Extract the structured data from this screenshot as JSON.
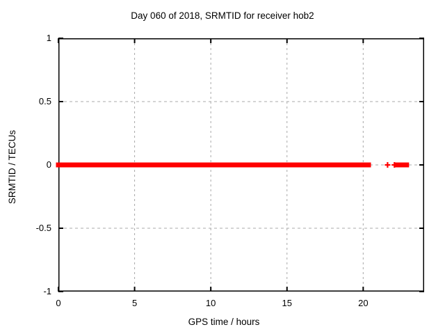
{
  "chart_data": {
    "type": "scatter",
    "title": "Day 060 of 2018, SRMTID for receiver hob2",
    "xlabel": "GPS time / hours",
    "ylabel": "SRMTID / TECUs",
    "xlim": [
      0,
      24
    ],
    "ylim": [
      -1,
      1
    ],
    "xticks": [
      0,
      5,
      10,
      15,
      20
    ],
    "xtick_labels": [
      "0",
      "5",
      "10",
      "15",
      "20"
    ],
    "yticks": [
      1,
      0.5,
      0,
      -0.5,
      -1
    ],
    "ytick_labels": [
      "1",
      "0.5",
      "0",
      "-0.5",
      "-1"
    ],
    "grid": true,
    "legend": "none",
    "marker": "plus",
    "colors": {
      "marker": "#ff0000",
      "grid": "#a8a8a8",
      "axis": "#000000",
      "background": "#ffffff"
    },
    "series": [
      {
        "name": "SRMTID",
        "y_value": 0,
        "dense_segments_hours": [
          [
            0.0,
            4.05
          ],
          [
            4.2,
            4.95
          ],
          [
            5.1,
            6.85
          ],
          [
            7.05,
            16.95
          ],
          [
            17.15,
            20.35
          ],
          [
            22.25,
            22.85
          ]
        ],
        "isolated_points_hours": [
          21.6,
          22.05
        ]
      }
    ]
  }
}
